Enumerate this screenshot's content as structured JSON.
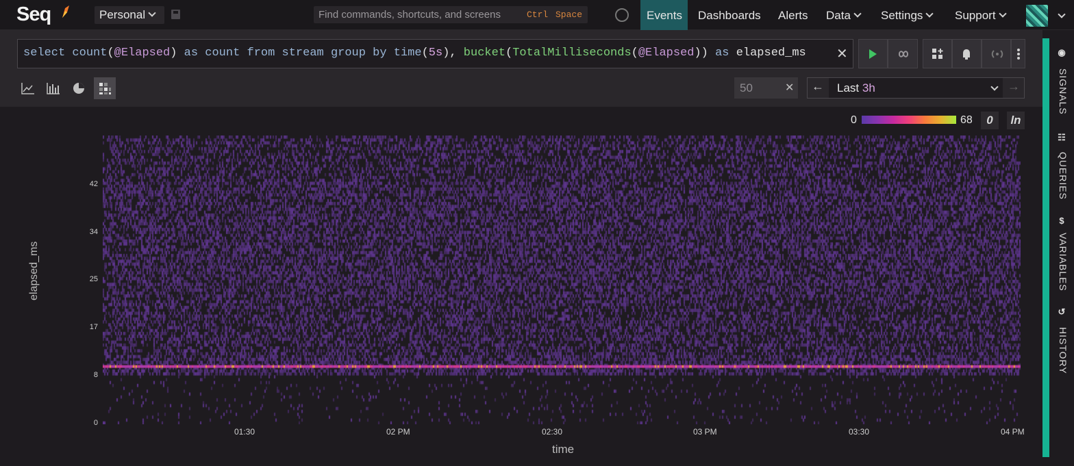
{
  "app": {
    "logo": "Seq",
    "workspace": "Personal"
  },
  "command_search": {
    "placeholder": "Find commands, shortcuts, and screens",
    "key1": "Ctrl",
    "key2": "Space"
  },
  "nav": {
    "items": [
      "Events",
      "Dashboards",
      "Alerts",
      "Data",
      "Settings",
      "Support"
    ],
    "active": "Events"
  },
  "query": {
    "tokens": [
      {
        "t": "select ",
        "c": "q-kw"
      },
      {
        "t": "count",
        "c": "q-kw"
      },
      {
        "t": "(",
        "c": "q-plain"
      },
      {
        "t": "@Elapsed",
        "c": "q-var"
      },
      {
        "t": ") ",
        "c": "q-plain"
      },
      {
        "t": "as ",
        "c": "q-kw"
      },
      {
        "t": "count ",
        "c": "q-kw"
      },
      {
        "t": "from ",
        "c": "q-kw"
      },
      {
        "t": "stream ",
        "c": "q-kw"
      },
      {
        "t": "group ",
        "c": "q-kw"
      },
      {
        "t": "by ",
        "c": "q-kw"
      },
      {
        "t": "time",
        "c": "q-kw"
      },
      {
        "t": "(",
        "c": "q-plain"
      },
      {
        "t": "5s",
        "c": "q-num"
      },
      {
        "t": "), ",
        "c": "q-plain"
      },
      {
        "t": "bucket",
        "c": "q-fn"
      },
      {
        "t": "(",
        "c": "q-plain"
      },
      {
        "t": "TotalMilliseconds",
        "c": "q-fn"
      },
      {
        "t": "(",
        "c": "q-plain"
      },
      {
        "t": "@Elapsed",
        "c": "q-var"
      },
      {
        "t": ")) ",
        "c": "q-plain"
      },
      {
        "t": "as ",
        "c": "q-kw"
      },
      {
        "t": "elapsed_ms",
        "c": "q-plain"
      }
    ]
  },
  "limit": {
    "value": "50"
  },
  "time_range": {
    "prefix": "Last ",
    "value": "3h"
  },
  "side_tabs": [
    "SIGNALS",
    "QUERIES",
    "VARIABLES",
    "HISTORY"
  ],
  "legend": {
    "min": "0",
    "max": "68",
    "zero_btn": "0",
    "log_btn": "ln"
  },
  "colors": {
    "accent": "#16b393",
    "nav_active": "#1e5a5e"
  },
  "chart_data": {
    "type": "heatmap",
    "xlabel": "time",
    "ylabel": "elapsed_ms",
    "y_ticks": [
      "0",
      "8",
      "17",
      "25",
      "34",
      "42"
    ],
    "x_ticks": [
      "01:30",
      "02 PM",
      "02:30",
      "03 PM",
      "03:30",
      "04 PM"
    ],
    "color_range": [
      0,
      68
    ],
    "ylim": [
      0,
      50
    ]
  }
}
